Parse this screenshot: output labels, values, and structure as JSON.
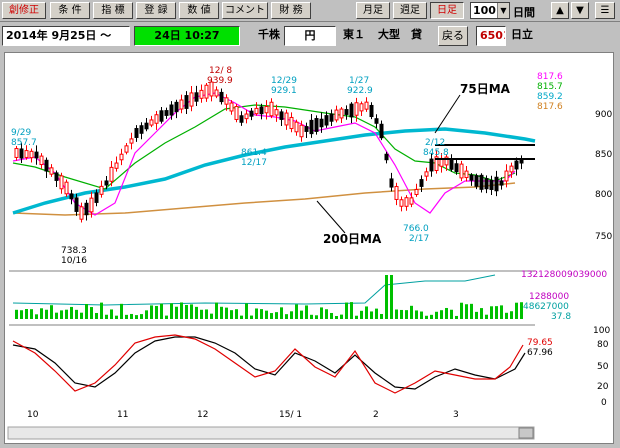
{
  "toolbar": {
    "buttons": [
      {
        "label": "創修正",
        "name": "soshusei-button",
        "red": true
      },
      {
        "label": "条 件",
        "name": "joken-button"
      },
      {
        "label": "指 標",
        "name": "shihyo-button"
      },
      {
        "label": "登 録",
        "name": "toroku-button"
      },
      {
        "label": "数 値",
        "name": "suchi-button"
      },
      {
        "label": "コメント",
        "name": "comment-button"
      },
      {
        "label": "財 務",
        "name": "zaimu-button"
      },
      {
        "label": "月足",
        "name": "monthly-button"
      },
      {
        "label": "週足",
        "name": "weekly-button"
      },
      {
        "label": "日足",
        "name": "daily-button",
        "red": true,
        "active": true
      }
    ],
    "period_value": "100",
    "period_unit": "日間",
    "up_label": "▲",
    "down_label": "▼",
    "menu_label": "☰"
  },
  "info": {
    "date_from": "2014年 9月25日 〜",
    "date_to": "24日 10:27",
    "unit": "千株",
    "currency": "円",
    "market": "東１",
    "size": "大型",
    "lending": "貸",
    "back_label": "戻る",
    "code": "6501",
    "name": "日立"
  },
  "chart": {
    "price_ticks": [
      "900.0",
      "850.0",
      "800.0",
      "750.0"
    ],
    "legend_values": [
      {
        "text": "817.6",
        "color": "#ff00ff"
      },
      {
        "text": "815.7",
        "color": "#00b000"
      },
      {
        "text": "859.2",
        "color": "#00a8c8"
      },
      {
        "text": "817.6",
        "color": "#d08020"
      }
    ],
    "annotations": {
      "a1_date": "9/29",
      "a1_price": "857.7",
      "a2_date": "12/ 8",
      "a2_price": "939.9",
      "a3_date": "12/29",
      "a3_price": "929.1",
      "a4_date": "1/27",
      "a4_price": "922.9",
      "a5_price": "861.4",
      "a5_date": "12/17",
      "a6_date": "2/12",
      "a6_price": "845.8",
      "a7_price": "738.3",
      "a7_date": "10/16",
      "a8_price": "766.0",
      "a8_date": "2/17",
      "ma75_label": "75日MA",
      "ma200_label": "200日MA"
    },
    "volume_labels": [
      {
        "text": "13212800",
        "color": "#c000c0"
      },
      {
        "text": "9039000",
        "color": "#c000c0"
      },
      {
        "text": "1288000",
        "color": "#c000c0"
      },
      {
        "text": "48627000",
        "color": "#00a0a0"
      },
      {
        "text": "37.8",
        "color": "#00a0a0"
      }
    ],
    "stoch_ticks": [
      "100",
      "80",
      "50",
      "20",
      "0"
    ],
    "stoch_values": [
      {
        "text": "79.65",
        "color": "#e00000"
      },
      {
        "text": "67.96",
        "color": "#000000"
      }
    ],
    "x_labels": [
      "10",
      "11",
      "12",
      "15/ 1",
      "2",
      "3"
    ],
    "colors": {
      "up_candle": "#ff0000",
      "down_candle": "#000000",
      "ma_short": "#ff00ff",
      "ma_mid": "#00b000",
      "ma75": "#00b8d0",
      "ma200": "#d09040",
      "volume": "#00c000"
    }
  }
}
